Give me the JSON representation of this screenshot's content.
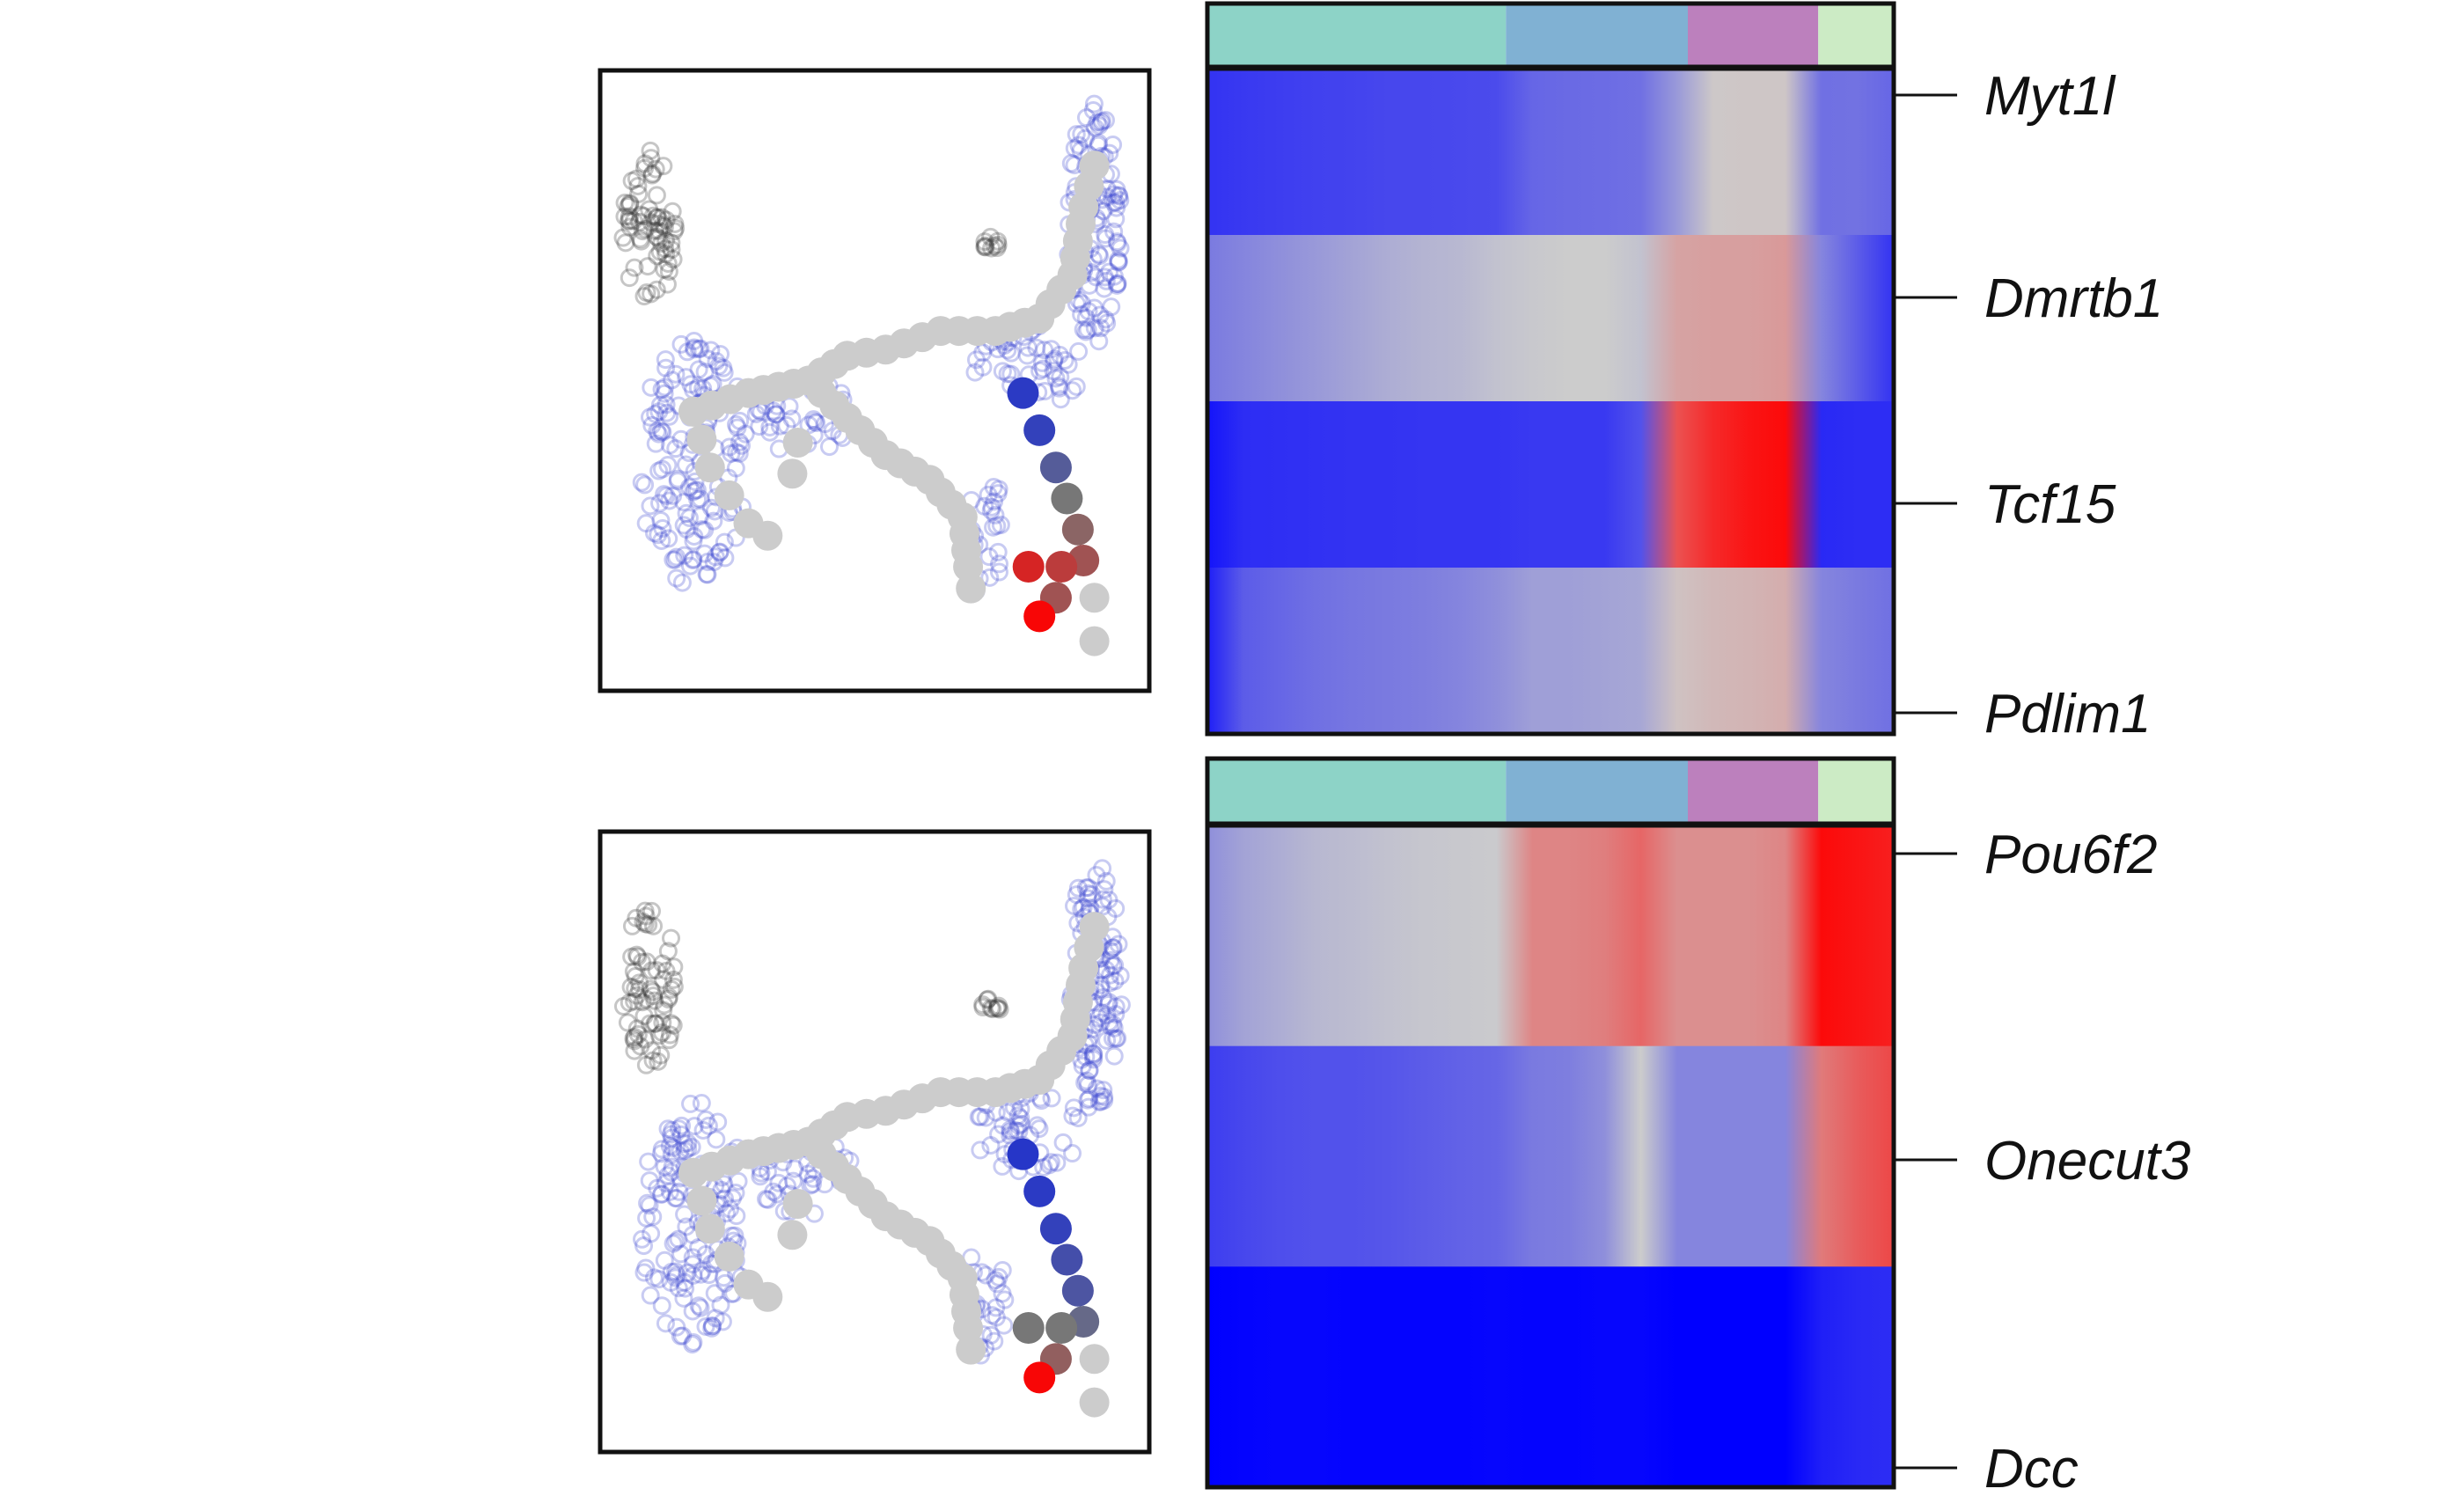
{
  "chart_data": [
    {
      "type": "heatmap",
      "panel": "top",
      "group_colors": [
        "#8dd3c7",
        "#80b1d3",
        "#bc80bd",
        "#ccebc5"
      ],
      "group_widths": [
        0.435,
        0.265,
        0.19,
        0.11
      ],
      "genes": [
        "Myt1l",
        "Dmrtb1",
        "Tcf15",
        "Pdlim1"
      ],
      "color_scale": {
        "low": "#0000ff",
        "mid": "#cccccc",
        "high": "#ff0000"
      },
      "columns": 20,
      "values": [
        [
          -0.75,
          -0.72,
          -0.7,
          -0.68,
          -0.67,
          -0.65,
          -0.65,
          -0.64,
          -0.63,
          -0.5,
          -0.48,
          -0.47,
          -0.45,
          -0.25,
          0.02,
          0.03,
          0.03,
          -0.45,
          -0.44,
          -0.5
        ],
        [
          -0.4,
          -0.35,
          -0.3,
          -0.25,
          -0.2,
          -0.15,
          -0.12,
          -0.1,
          -0.05,
          -0.02,
          0.0,
          0.0,
          -0.05,
          0.2,
          0.22,
          0.22,
          0.25,
          -0.35,
          -0.55,
          -0.75
        ],
        [
          -0.9,
          -0.78,
          -0.77,
          -0.76,
          -0.75,
          -0.75,
          -0.74,
          -0.74,
          -0.74,
          -0.72,
          -0.72,
          -0.72,
          -0.6,
          0.6,
          0.8,
          0.9,
          0.95,
          -0.8,
          -0.78,
          -0.78
        ],
        [
          -0.85,
          -0.55,
          -0.5,
          -0.45,
          -0.42,
          -0.4,
          -0.38,
          -0.35,
          -0.3,
          -0.22,
          -0.22,
          -0.2,
          -0.18,
          0.05,
          0.1,
          0.12,
          0.15,
          -0.35,
          -0.4,
          -0.45
        ]
      ]
    },
    {
      "type": "heatmap",
      "panel": "bottom",
      "group_colors": [
        "#8dd3c7",
        "#80b1d3",
        "#bc80bd",
        "#ccebc5"
      ],
      "group_widths": [
        0.435,
        0.265,
        0.19,
        0.11
      ],
      "genes": [
        "Pou6f2",
        "Onecut3",
        "Dcc"
      ],
      "color_scale": {
        "low": "#0000ff",
        "mid": "#cccccc",
        "high": "#ff0000"
      },
      "columns": 20,
      "values": [
        [
          -0.3,
          -0.2,
          -0.15,
          -0.1,
          -0.08,
          -0.05,
          -0.03,
          -0.02,
          -0.01,
          0.35,
          0.35,
          0.38,
          0.5,
          0.3,
          0.3,
          0.3,
          0.35,
          0.95,
          0.9,
          0.85
        ],
        [
          -0.7,
          -0.65,
          -0.62,
          -0.6,
          -0.6,
          -0.58,
          -0.55,
          -0.52,
          -0.5,
          -0.4,
          -0.38,
          -0.3,
          0.0,
          -0.35,
          -0.35,
          -0.35,
          -0.35,
          0.4,
          0.55,
          0.65
        ],
        [
          -1.0,
          -0.98,
          -0.97,
          -0.97,
          -0.98,
          -0.98,
          -0.98,
          -0.98,
          -0.97,
          -0.98,
          -0.98,
          -0.97,
          -0.97,
          -1.0,
          -1.0,
          -1.0,
          -1.0,
          -0.85,
          -0.8,
          -0.78
        ]
      ]
    },
    {
      "type": "scatter",
      "panel": "top-embedding",
      "point_color_scale": {
        "low": "#2233cc",
        "mid": "#777777",
        "high": "#ff0000",
        "inactive": "#cccccc"
      },
      "trajectory_highlight": [
        -0.9,
        -0.8,
        -0.4,
        0.0,
        0.15,
        0.3,
        0.5,
        0.7,
        0.3,
        0.95
      ]
    },
    {
      "type": "scatter",
      "panel": "bottom-embedding",
      "point_color_scale": {
        "low": "#2233cc",
        "mid": "#777777",
        "high": "#ff0000",
        "inactive": "#cccccc"
      },
      "trajectory_highlight": [
        -0.95,
        -0.9,
        -0.8,
        -0.6,
        -0.5,
        -0.2,
        0.0,
        0.0,
        0.2,
        0.95
      ]
    }
  ]
}
